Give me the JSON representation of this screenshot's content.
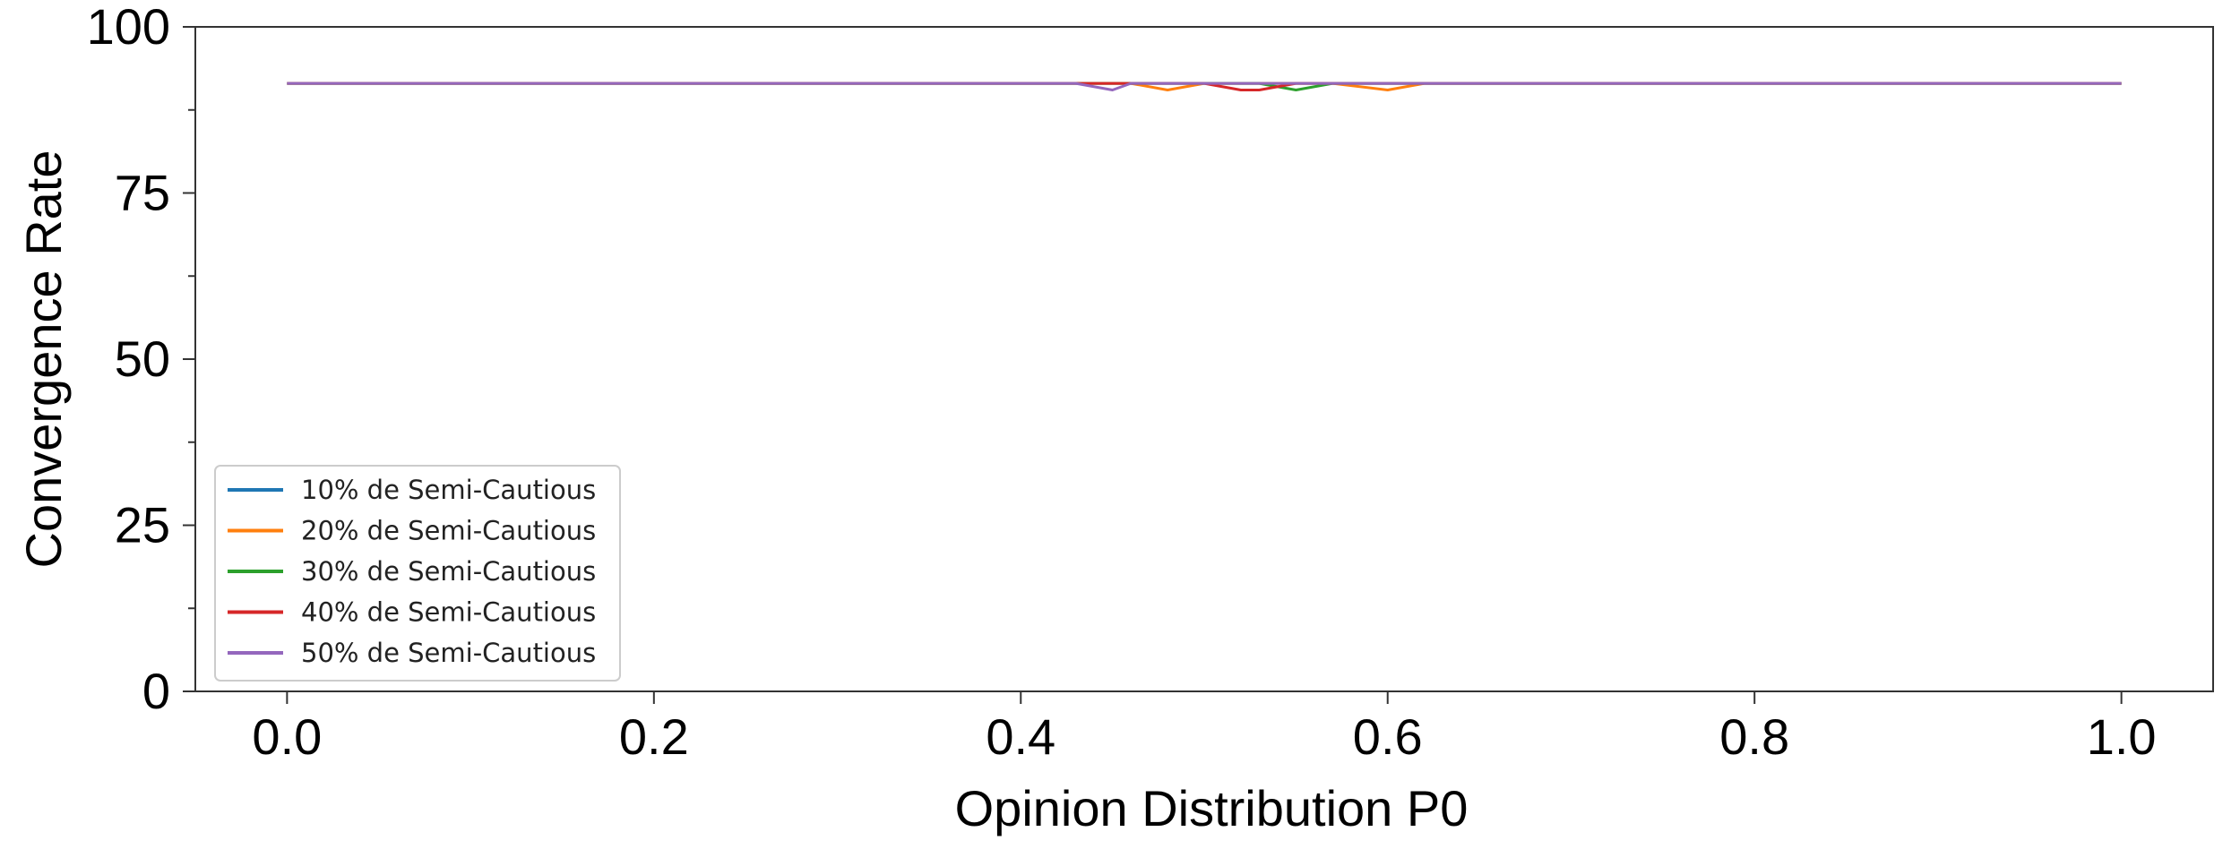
{
  "chart_data": {
    "type": "line",
    "title": "",
    "xlabel": "Opinion Distribution P0",
    "ylabel": "Convergence Rate",
    "xlim": [
      -0.05,
      1.05
    ],
    "ylim": [
      0,
      100
    ],
    "xticks": [
      0.0,
      0.2,
      0.4,
      0.6,
      0.8,
      1.0
    ],
    "xtick_labels": [
      "0.0",
      "0.2",
      "0.4",
      "0.6",
      "0.8",
      "1.0"
    ],
    "yticks": [
      0,
      25,
      50,
      75,
      100
    ],
    "ytick_labels": [
      "0",
      "25",
      "50",
      "75",
      "100"
    ],
    "y_minor_ticks": [
      12.5,
      37.5,
      62.5,
      87.5
    ],
    "grid": false,
    "legend_position": "lower-left",
    "x": [
      0.0,
      0.1,
      0.2,
      0.3,
      0.4,
      0.43,
      0.45,
      0.46,
      0.48,
      0.5,
      0.52,
      0.53,
      0.55,
      0.57,
      0.6,
      0.62,
      0.7,
      0.8,
      0.9,
      1.0
    ],
    "series": [
      {
        "name": "10% de Semi-Cautious",
        "color": "#1f77b4",
        "values": [
          91.5,
          91.5,
          91.5,
          91.5,
          91.5,
          91.5,
          91.5,
          91.5,
          91.5,
          91.5,
          91.5,
          91.5,
          91.5,
          91.5,
          91.5,
          91.5,
          91.5,
          91.5,
          91.5,
          91.5
        ]
      },
      {
        "name": "20% de Semi-Cautious",
        "color": "#ff7f0e",
        "values": [
          91.5,
          91.5,
          91.5,
          91.5,
          91.5,
          91.5,
          91.5,
          91.5,
          90.5,
          91.5,
          91.5,
          91.5,
          91.5,
          91.5,
          90.5,
          91.5,
          91.5,
          91.5,
          91.5,
          91.5
        ]
      },
      {
        "name": "30% de Semi-Cautious",
        "color": "#2ca02c",
        "values": [
          91.5,
          91.5,
          91.5,
          91.5,
          91.5,
          91.5,
          91.5,
          91.5,
          91.5,
          91.5,
          91.5,
          91.5,
          90.5,
          91.5,
          91.5,
          91.5,
          91.5,
          91.5,
          91.5,
          91.5
        ]
      },
      {
        "name": "40% de Semi-Cautious",
        "color": "#d62728",
        "values": [
          91.5,
          91.5,
          91.5,
          91.5,
          91.5,
          91.5,
          91.5,
          91.5,
          91.5,
          91.5,
          90.5,
          90.5,
          91.5,
          91.5,
          91.5,
          91.5,
          91.5,
          91.5,
          91.5,
          91.5
        ]
      },
      {
        "name": "50% de Semi-Cautious",
        "color": "#9467bd",
        "values": [
          91.5,
          91.5,
          91.5,
          91.5,
          91.5,
          91.5,
          90.5,
          91.5,
          91.5,
          91.5,
          91.5,
          91.5,
          91.5,
          91.5,
          91.5,
          91.5,
          91.5,
          91.5,
          91.5,
          91.5
        ]
      }
    ]
  }
}
